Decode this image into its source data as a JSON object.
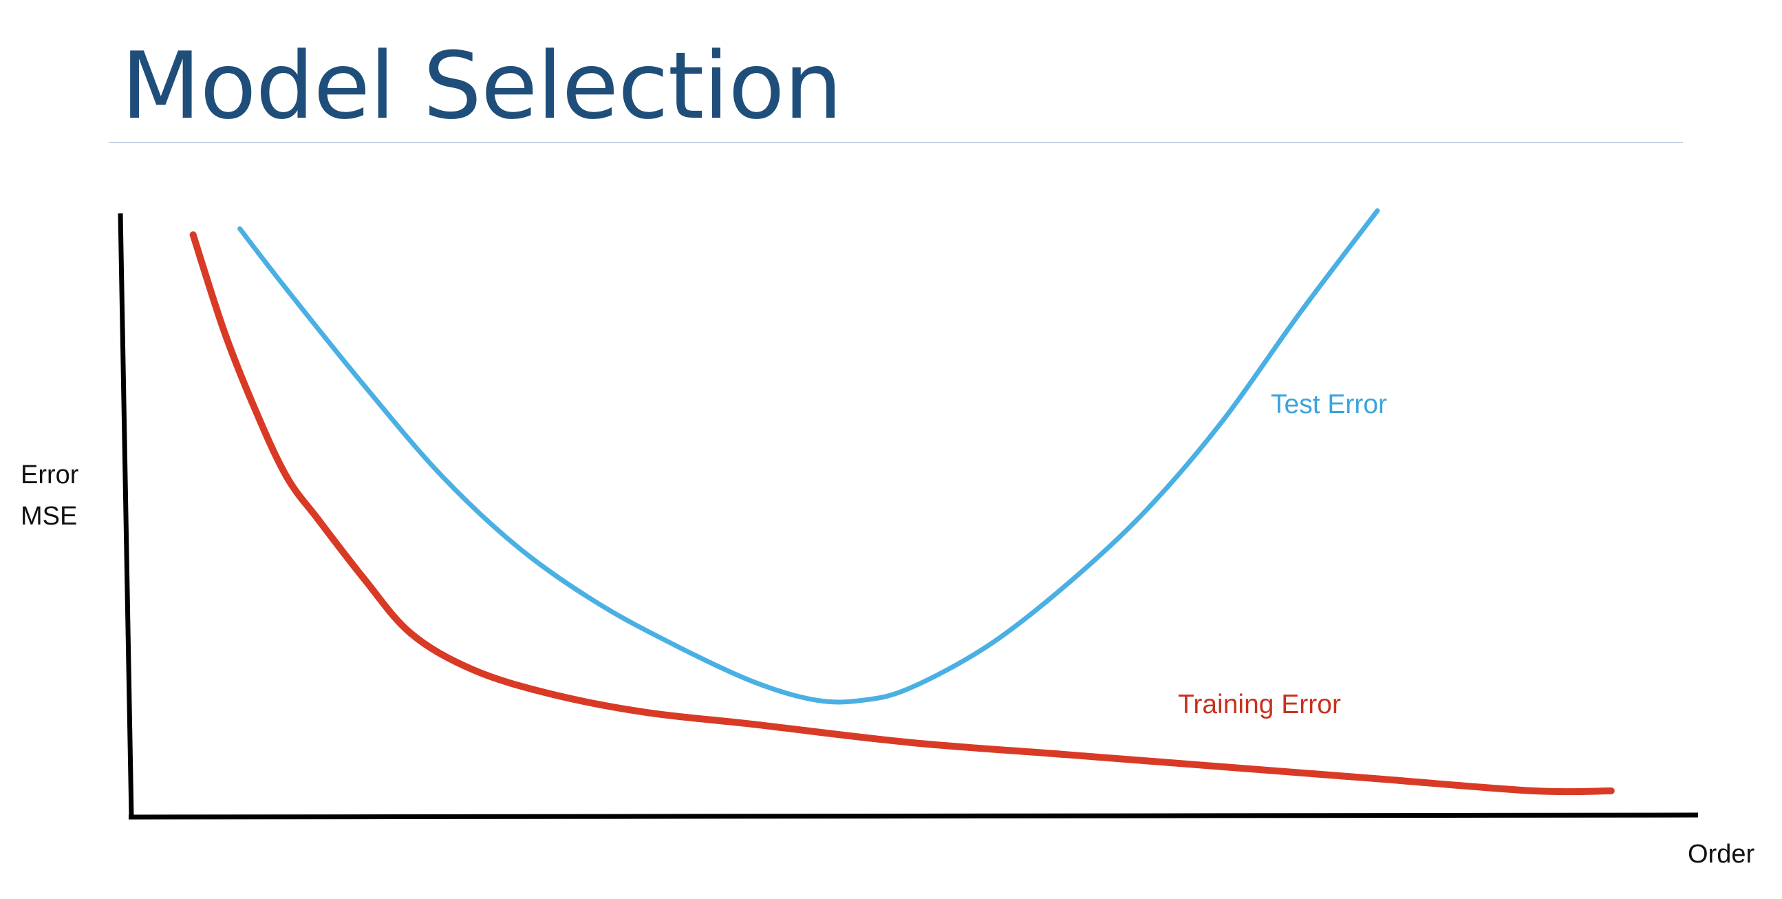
{
  "slide": {
    "title": "Model Selection"
  },
  "chart_data": {
    "type": "line",
    "title": "",
    "xlabel": "Order",
    "ylabel_lines": [
      "Error",
      "MSE"
    ],
    "grid": false,
    "xlim": [
      0,
      1
    ],
    "ylim": [
      0,
      1
    ],
    "axis_color": "#000000",
    "series": [
      {
        "name": "Test Error",
        "color": "#4ab0e4",
        "label_color": "#3aa4dc",
        "x": [
          0.07,
          0.1,
          0.15,
          0.2,
          0.25,
          0.3,
          0.35,
          0.4,
          0.44,
          0.47,
          0.5,
          0.55,
          0.6,
          0.65,
          0.7,
          0.75,
          0.8
        ],
        "y": [
          0.97,
          0.87,
          0.71,
          0.56,
          0.44,
          0.35,
          0.28,
          0.22,
          0.19,
          0.19,
          0.21,
          0.28,
          0.38,
          0.5,
          0.65,
          0.83,
          1.0
        ]
      },
      {
        "name": "Training Error",
        "color": "#d93a25",
        "label_color": "#c8311f",
        "x": [
          0.04,
          0.06,
          0.08,
          0.1,
          0.12,
          0.15,
          0.18,
          0.22,
          0.27,
          0.33,
          0.4,
          0.5,
          0.6,
          0.7,
          0.8,
          0.9,
          0.95
        ],
        "y": [
          0.96,
          0.8,
          0.67,
          0.56,
          0.49,
          0.39,
          0.3,
          0.24,
          0.2,
          0.17,
          0.15,
          0.12,
          0.1,
          0.08,
          0.06,
          0.04,
          0.04
        ]
      }
    ]
  }
}
